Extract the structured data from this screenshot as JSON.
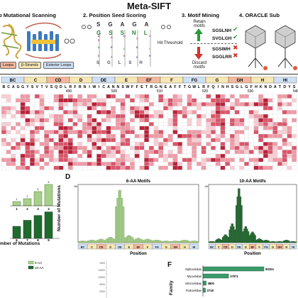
{
  "title": "Meta-SIFT",
  "steps": {
    "s1": "p Mutational Scanning",
    "s2": "2. Position Seed Scoring",
    "s3": "3. Motif Mining",
    "s4": "4. ORACLE Sub"
  },
  "legend_loops": {
    "loops": "Loops",
    "strands": "β-Strands",
    "exterior": "Exterior Loops"
  },
  "seed_scoring": {
    "columns": [
      {
        "top": "S",
        "mid": "G",
        "bottom": "S"
      },
      {
        "top": "G",
        "mid": "S",
        "bottom": "G"
      },
      {
        "top": "A",
        "mid": "S",
        "bottom": "L"
      },
      {
        "top": "G",
        "mid": "N",
        "bottom": "S"
      },
      {
        "top": "A",
        "mid": "L",
        "bottom": "H"
      }
    ]
  },
  "motif_mining": {
    "retain": "Retain motifs",
    "discard": "Discard motifs",
    "threshold": "Hit Threshold",
    "kept": [
      "SGSLNH",
      "SVGLGH"
    ],
    "rejected": [
      "SGSIMH",
      "SGGLRR"
    ]
  },
  "heatmap": {
    "regions": [
      {
        "label": "BC",
        "color": "#cfe0f3"
      },
      {
        "label": "C",
        "color": "#f6e7b4"
      },
      {
        "label": "CD",
        "color": "#f2b79d"
      },
      {
        "label": "D",
        "color": "#f6e7b4"
      },
      {
        "label": "DE",
        "color": "#cfe0f3"
      },
      {
        "label": "E",
        "color": "#f6e7b4"
      },
      {
        "label": "EF",
        "color": "#f2b79d"
      },
      {
        "label": "F",
        "color": "#f6e7b4"
      },
      {
        "label": "FG",
        "color": "#cfe0f3"
      },
      {
        "label": "G",
        "color": "#f6e7b4"
      },
      {
        "label": "GH",
        "color": "#f2b79d"
      },
      {
        "label": "H",
        "color": "#f6e7b4"
      },
      {
        "label": "HI",
        "color": "#cfe0f3"
      }
    ],
    "sequence": "BCAGGYSVTVSQDLRFRNIWICANNSWFFETRGNEAFFTGWLRFQINHSGLGFHKNDATDYS",
    "ticks": [
      "490",
      "500",
      "510",
      "520",
      "530",
      "540"
    ]
  },
  "panelC": {
    "bar_labels": [
      "1",
      "2",
      "3",
      "4"
    ],
    "lower_labels": [
      "6",
      "7",
      "8",
      "9"
    ],
    "upper_values": [
      "2",
      "2",
      "5",
      "5"
    ],
    "xlabel": "mber of Mutations"
  },
  "panelD": {
    "letter": "D",
    "ylabel": "Number of Mutations",
    "xlabel": "Position",
    "left_title": "6-AA Motifs",
    "right_title": "10-AA Motifs",
    "left_max": "60",
    "right_max": "40"
  },
  "panelE": {
    "legend": [
      "6-AA",
      "10-AA"
    ],
    "ticks": [
      "1500",
      "12000",
      "10000",
      "4000",
      "2000"
    ]
  },
  "panelF": {
    "letter": "F",
    "ylabel": "Family",
    "bars": [
      {
        "label": "Siphoviridae",
        "value": "90204"
      },
      {
        "label": "Myoviridae",
        "value": "37971"
      },
      {
        "label": "Microviridae",
        "value": "4800"
      },
      {
        "label": "Podoviridae",
        "value": "3718"
      }
    ]
  },
  "chart_data": [
    {
      "type": "bar",
      "title": "6-AA Motifs",
      "xlabel": "Position",
      "ylabel": "Number of Mutations",
      "categories": [
        "BC",
        "C",
        "CD",
        "D",
        "DE",
        "E",
        "EF",
        "F",
        "FG",
        "G",
        "GH",
        "H",
        "HI"
      ],
      "values": [
        2,
        3,
        4,
        6,
        58,
        8,
        5,
        4,
        3,
        2,
        2,
        3,
        2
      ],
      "ylim": [
        0,
        60
      ]
    },
    {
      "type": "bar",
      "title": "10-AA Motifs",
      "xlabel": "Position",
      "categories": [
        "BC",
        "C",
        "CD",
        "D",
        "DE",
        "E",
        "EF",
        "F",
        "FG",
        "G",
        "GH",
        "H",
        "HI"
      ],
      "values": [
        1,
        3,
        6,
        14,
        40,
        12,
        8,
        3,
        2,
        1,
        1,
        2,
        1
      ],
      "ylim": [
        0,
        40
      ]
    },
    {
      "type": "bar",
      "title": "",
      "ylabel": "Family",
      "categories": [
        "Siphoviridae",
        "Myoviridae",
        "Microviridae",
        "Podoviridae"
      ],
      "values": [
        90204,
        37971,
        4800,
        3718
      ]
    }
  ]
}
